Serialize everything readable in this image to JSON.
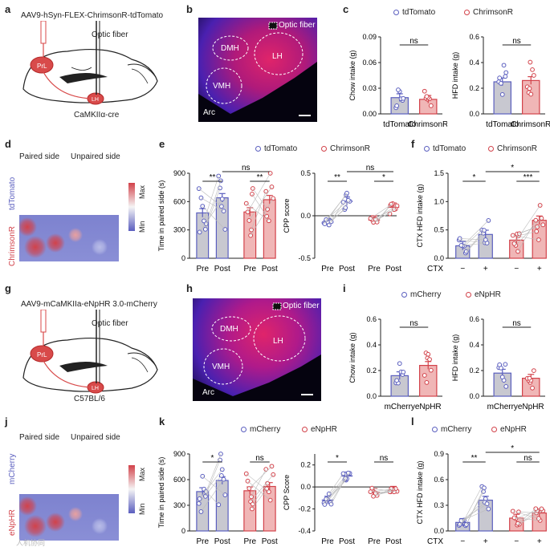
{
  "colors": {
    "ctrl": "#5b5fbf",
    "exp": "#d2424a",
    "bar_ctrl": "#c8c8d0",
    "bar_exp": "#f0b6b6"
  },
  "panel_labels": {
    "a": "a",
    "b": "b",
    "c": "c",
    "d": "d",
    "e": "e",
    "f": "f",
    "g": "g",
    "h": "h",
    "i": "i",
    "j": "j",
    "k": "k",
    "l": "l"
  },
  "a": {
    "virus": "AAV9-hSyn-FLEX-ChrimsonR-tdTomato",
    "fiber": "Optic fiber",
    "prl": "PrL",
    "lh": "LH",
    "mouse": "CaMKIIα-cre"
  },
  "g": {
    "virus": "AAV9-mCaMKIIa-eNpHR 3.0-mCherry",
    "fiber": "Optic fiber",
    "prl": "PrL",
    "lh": "LH",
    "mouse": "C57BL/6"
  },
  "b": {
    "fiber": "Optic fiber",
    "dmh": "DMH",
    "lh": "LH",
    "vmh": "VMH",
    "arc": "Arc"
  },
  "h": {
    "fiber": "Optic fiber",
    "dmh": "DMH",
    "lh": "LH",
    "vmh": "VMH",
    "arc": "Arc"
  },
  "d": {
    "paired": "Paired side",
    "unpaired": "Unpaired side",
    "row1": "tdTomato",
    "row2": "ChrimsonR",
    "max": "Max",
    "min": "Min"
  },
  "j": {
    "paired": "Paired side",
    "unpaired": "Unpaired side",
    "row1": "mCherry",
    "row2": "eNpHR",
    "max": "Max",
    "min": "Min"
  },
  "legend_top": {
    "ctrl": "tdTomato",
    "exp": "ChrimsonR"
  },
  "legend_bottom": {
    "ctrl": "mCherry",
    "exp": "eNpHR"
  },
  "watermark": "人机协同",
  "chart_data": [
    {
      "id": "c-chow",
      "type": "bar",
      "ylabel": "Chow intake (g)",
      "ylim": [
        0,
        0.09
      ],
      "yticks": [
        "0.00",
        "0.03",
        "0.06",
        "0.09"
      ],
      "categories": [
        "tdTomato",
        "ChrimsonR"
      ],
      "values": [
        0.019,
        0.017
      ],
      "sig": "ns"
    },
    {
      "id": "c-hfd",
      "type": "bar",
      "ylabel": "HFD intake (g)",
      "ylim": [
        0,
        0.6
      ],
      "yticks": [
        "0.0",
        "0.2",
        "0.4",
        "0.6"
      ],
      "categories": [
        "tdTomato",
        "ChrimsonR"
      ],
      "values": [
        0.25,
        0.26
      ],
      "sig": "ns"
    },
    {
      "id": "e-time",
      "type": "bar",
      "ylabel": "Time in paired side (s)",
      "ylim": [
        0,
        900
      ],
      "yticks": [
        "0",
        "300",
        "600",
        "900"
      ],
      "categories": [
        "Pre",
        "Post",
        "Pre",
        "Post"
      ],
      "values": [
        480,
        640,
        490,
        620
      ],
      "sig": [
        "**",
        "**",
        "ns"
      ]
    },
    {
      "id": "e-cpp",
      "type": "scatter",
      "ylabel": "CPP score",
      "ylim": [
        -0.5,
        0.5
      ],
      "yticks": [
        "-0.5",
        "0.0",
        "0.5"
      ],
      "categories": [
        "Pre",
        "Post",
        "Pre",
        "Post"
      ],
      "values": [
        -0.08,
        0.17,
        -0.05,
        0.1
      ],
      "sig": [
        "**",
        "*",
        "ns"
      ]
    },
    {
      "id": "f-ctx",
      "type": "bar",
      "ylabel": "CTX HFD intake (g)",
      "ylim": [
        0,
        1.5
      ],
      "yticks": [
        "0.0",
        "0.5",
        "1.0",
        "1.5"
      ],
      "categories": [
        "−",
        "+",
        "−",
        "+"
      ],
      "xprefix": "CTX",
      "values": [
        0.22,
        0.42,
        0.32,
        0.67
      ],
      "sig": [
        "*",
        "***",
        "*"
      ]
    },
    {
      "id": "i-chow",
      "type": "bar",
      "ylabel": "Chow intake (g)",
      "ylim": [
        0,
        0.6
      ],
      "yticks": [
        "0.0",
        "0.2",
        "0.4",
        "0.6"
      ],
      "categories": [
        "mCherry",
        "eNpHR"
      ],
      "values": [
        0.16,
        0.24
      ],
      "sig": "ns"
    },
    {
      "id": "i-hfd",
      "type": "bar",
      "ylabel": "HFD intake (g)",
      "ylim": [
        0,
        0.6
      ],
      "yticks": [
        "0.0",
        "0.2",
        "0.4",
        "0.6"
      ],
      "categories": [
        "mCherry",
        "eNpHR"
      ],
      "values": [
        0.18,
        0.14
      ],
      "sig": "ns"
    },
    {
      "id": "k-time",
      "type": "bar",
      "ylabel": "Time in paired side (s)",
      "ylim": [
        0,
        900
      ],
      "yticks": [
        "0",
        "300",
        "600",
        "900"
      ],
      "categories": [
        "Pre",
        "Post",
        "Pre",
        "Post"
      ],
      "values": [
        460,
        590,
        470,
        520
      ],
      "sig": [
        "*",
        "ns"
      ]
    },
    {
      "id": "k-cpp",
      "type": "scatter",
      "ylabel": "CPP Score",
      "ylim": [
        -0.4,
        0.3
      ],
      "yticks": [
        "-0.4",
        "-0.2",
        "0.0",
        "0.2"
      ],
      "categories": [
        "Pre",
        "Post",
        "Pre",
        "Post"
      ],
      "values": [
        -0.12,
        0.1,
        -0.05,
        -0.03
      ],
      "sig": [
        "*",
        "ns"
      ]
    },
    {
      "id": "l-ctx",
      "type": "bar",
      "ylabel": "CTX HFD intake (g)",
      "ylim": [
        0,
        0.9
      ],
      "yticks": [
        "0.0",
        "0.3",
        "0.6",
        "0.9"
      ],
      "categories": [
        "−",
        "+",
        "−",
        "+"
      ],
      "xprefix": "CTX",
      "values": [
        0.1,
        0.36,
        0.15,
        0.21
      ],
      "sig": [
        "**",
        "ns",
        "*"
      ]
    }
  ]
}
